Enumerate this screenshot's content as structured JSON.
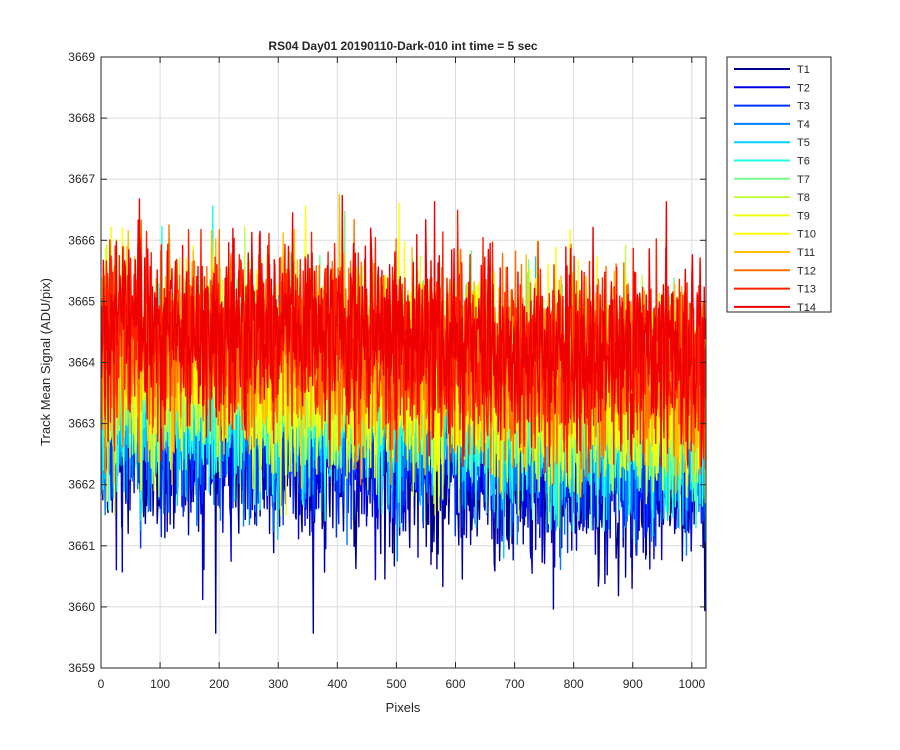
{
  "chart_data": {
    "type": "line",
    "title": "RS04 Day01 20190110-Dark-010 int time = 5 sec",
    "xlabel": "Pixels",
    "ylabel": "Track Mean Signal (ADU/pix)",
    "xlim": [
      0,
      1024
    ],
    "ylim": [
      3659,
      3669
    ],
    "xticks": [
      "0",
      "100",
      "200",
      "300",
      "400",
      "500",
      "600",
      "700",
      "800",
      "900",
      "1000"
    ],
    "xtick_values": [
      0,
      100,
      200,
      300,
      400,
      500,
      600,
      700,
      800,
      900,
      1000
    ],
    "yticks": [
      "3659",
      "3660",
      "3661",
      "3662",
      "3663",
      "3664",
      "3665",
      "3666",
      "3667",
      "3668",
      "3669"
    ],
    "ytick_values": [
      3659,
      3660,
      3661,
      3662,
      3663,
      3664,
      3665,
      3666,
      3667,
      3668,
      3669
    ],
    "grid": true,
    "legend_position": "outside-top-right",
    "series": [
      {
        "name": "T1",
        "color": "#00008f",
        "mean": [
          [
            0,
            3662.6
          ],
          [
            300,
            3662.5
          ],
          [
            600,
            3662.2
          ],
          [
            1024,
            3662.0
          ]
        ],
        "range": [
          3659.57,
          3665.5
        ]
      },
      {
        "name": "T2",
        "color": "#0000df",
        "mean": [
          [
            0,
            3662.9
          ],
          [
            300,
            3662.8
          ],
          [
            600,
            3662.5
          ],
          [
            1024,
            3662.3
          ]
        ],
        "range": [
          3659.8,
          3666.0
        ]
      },
      {
        "name": "T3",
        "color": "#0030ff",
        "mean": [
          [
            0,
            3663.1
          ],
          [
            300,
            3663.0
          ],
          [
            600,
            3662.8
          ],
          [
            1024,
            3662.5
          ]
        ],
        "range": [
          3660.3,
          3666.5
        ]
      },
      {
        "name": "T4",
        "color": "#0080ff",
        "mean": [
          [
            0,
            3663.3
          ],
          [
            300,
            3663.2
          ],
          [
            600,
            3663.0
          ],
          [
            1024,
            3662.7
          ]
        ],
        "range": [
          3660.5,
          3666.8
        ]
      },
      {
        "name": "T5",
        "color": "#00cfff",
        "mean": [
          [
            0,
            3663.5
          ],
          [
            300,
            3663.4
          ],
          [
            600,
            3663.2
          ],
          [
            1024,
            3662.9
          ]
        ],
        "range": [
          3660.8,
          3667.2
        ]
      },
      {
        "name": "T6",
        "color": "#20ffdf",
        "mean": [
          [
            0,
            3663.6
          ],
          [
            300,
            3663.5
          ],
          [
            600,
            3663.3
          ],
          [
            1024,
            3663.0
          ]
        ],
        "range": [
          3660.3,
          3667.4
        ]
      },
      {
        "name": "T7",
        "color": "#70ff8f",
        "mean": [
          [
            0,
            3663.8
          ],
          [
            300,
            3663.7
          ],
          [
            600,
            3663.5
          ],
          [
            1024,
            3663.2
          ]
        ],
        "range": [
          3661.0,
          3667.0
        ]
      },
      {
        "name": "T8",
        "color": "#bfff40",
        "mean": [
          [
            0,
            3663.9
          ],
          [
            300,
            3663.8
          ],
          [
            600,
            3663.6
          ],
          [
            1024,
            3663.3
          ]
        ],
        "range": [
          3661.2,
          3667.5
        ]
      },
      {
        "name": "T9",
        "color": "#efff10",
        "mean": [
          [
            0,
            3664.0
          ],
          [
            300,
            3663.9
          ],
          [
            600,
            3663.7
          ],
          [
            1024,
            3663.4
          ]
        ],
        "range": [
          3661.5,
          3667.9
        ]
      },
      {
        "name": "T10",
        "color": "#ffff00",
        "mean": [
          [
            0,
            3664.2
          ],
          [
            300,
            3664.1
          ],
          [
            600,
            3663.9
          ],
          [
            1024,
            3663.6
          ]
        ],
        "range": [
          3661.8,
          3668.0
        ]
      },
      {
        "name": "T11",
        "color": "#ffbf00",
        "mean": [
          [
            0,
            3664.3
          ],
          [
            300,
            3664.2
          ],
          [
            600,
            3664.0
          ],
          [
            1024,
            3663.7
          ]
        ],
        "range": [
          3661.8,
          3668.0
        ]
      },
      {
        "name": "T12",
        "color": "#ff7000",
        "mean": [
          [
            0,
            3664.4
          ],
          [
            300,
            3664.3
          ],
          [
            600,
            3664.1
          ],
          [
            1024,
            3663.8
          ]
        ],
        "range": [
          3662.0,
          3667.5
        ]
      },
      {
        "name": "T13",
        "color": "#ff2000",
        "mean": [
          [
            0,
            3664.5
          ],
          [
            300,
            3664.4
          ],
          [
            600,
            3664.2
          ],
          [
            1024,
            3663.9
          ]
        ],
        "range": [
          3662.2,
          3667.6
        ]
      },
      {
        "name": "T14",
        "color": "#ef0000",
        "mean": [
          [
            0,
            3664.6
          ],
          [
            300,
            3664.5
          ],
          [
            600,
            3664.3
          ],
          [
            1024,
            3664.0
          ]
        ],
        "range": [
          3662.3,
          3667.6
        ]
      }
    ],
    "noise_std": 0.75,
    "samples_shown": 1024
  }
}
